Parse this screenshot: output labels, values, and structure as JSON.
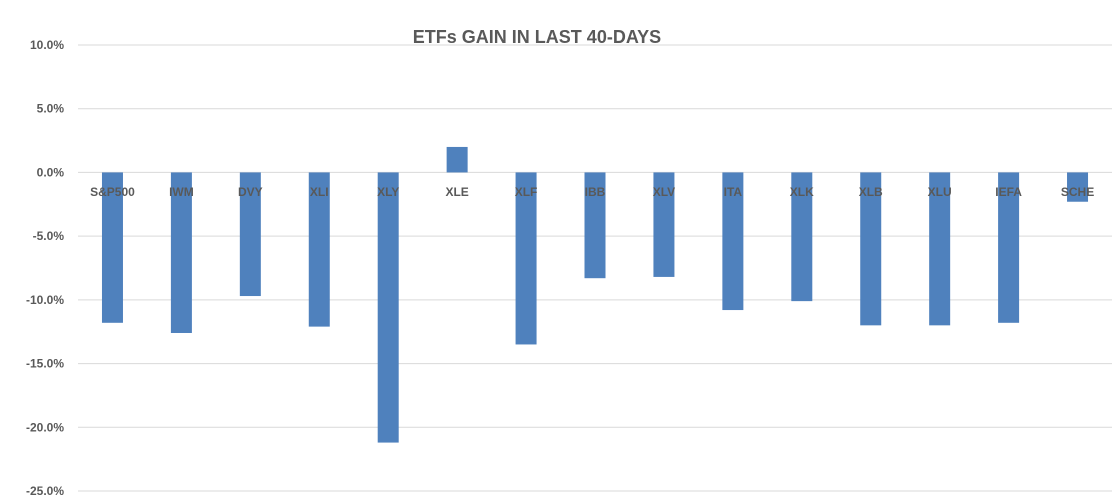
{
  "chart_data": {
    "type": "bar",
    "title": "ETFs GAIN IN LAST 40-DAYS",
    "xlabel": "",
    "ylabel": "",
    "categories": [
      "S&P500",
      "IWM",
      "DVY",
      "XLI",
      "XLY",
      "XLE",
      "XLF",
      "IBB",
      "XLV",
      "ITA",
      "XLK",
      "XLB",
      "XLU",
      "IEFA",
      "SCHE"
    ],
    "values": [
      -11.8,
      -12.6,
      -9.7,
      -12.1,
      -21.2,
      2.0,
      -13.5,
      -8.3,
      -8.2,
      -10.8,
      -10.1,
      -12.0,
      -12.0,
      -11.8,
      -2.3
    ],
    "value_format": "percent",
    "ylim": [
      -25,
      10
    ],
    "yticks": [
      10,
      5,
      0,
      -5,
      -10,
      -15,
      -20,
      -25
    ],
    "ytick_labels": [
      "10.0%",
      "5.0%",
      "0.0%",
      "-5.0%",
      "-10.0%",
      "-15.0%",
      "-20.0%",
      "-25.0%"
    ],
    "grid": true,
    "legend": "none",
    "bar_color": "#4f81bd"
  }
}
